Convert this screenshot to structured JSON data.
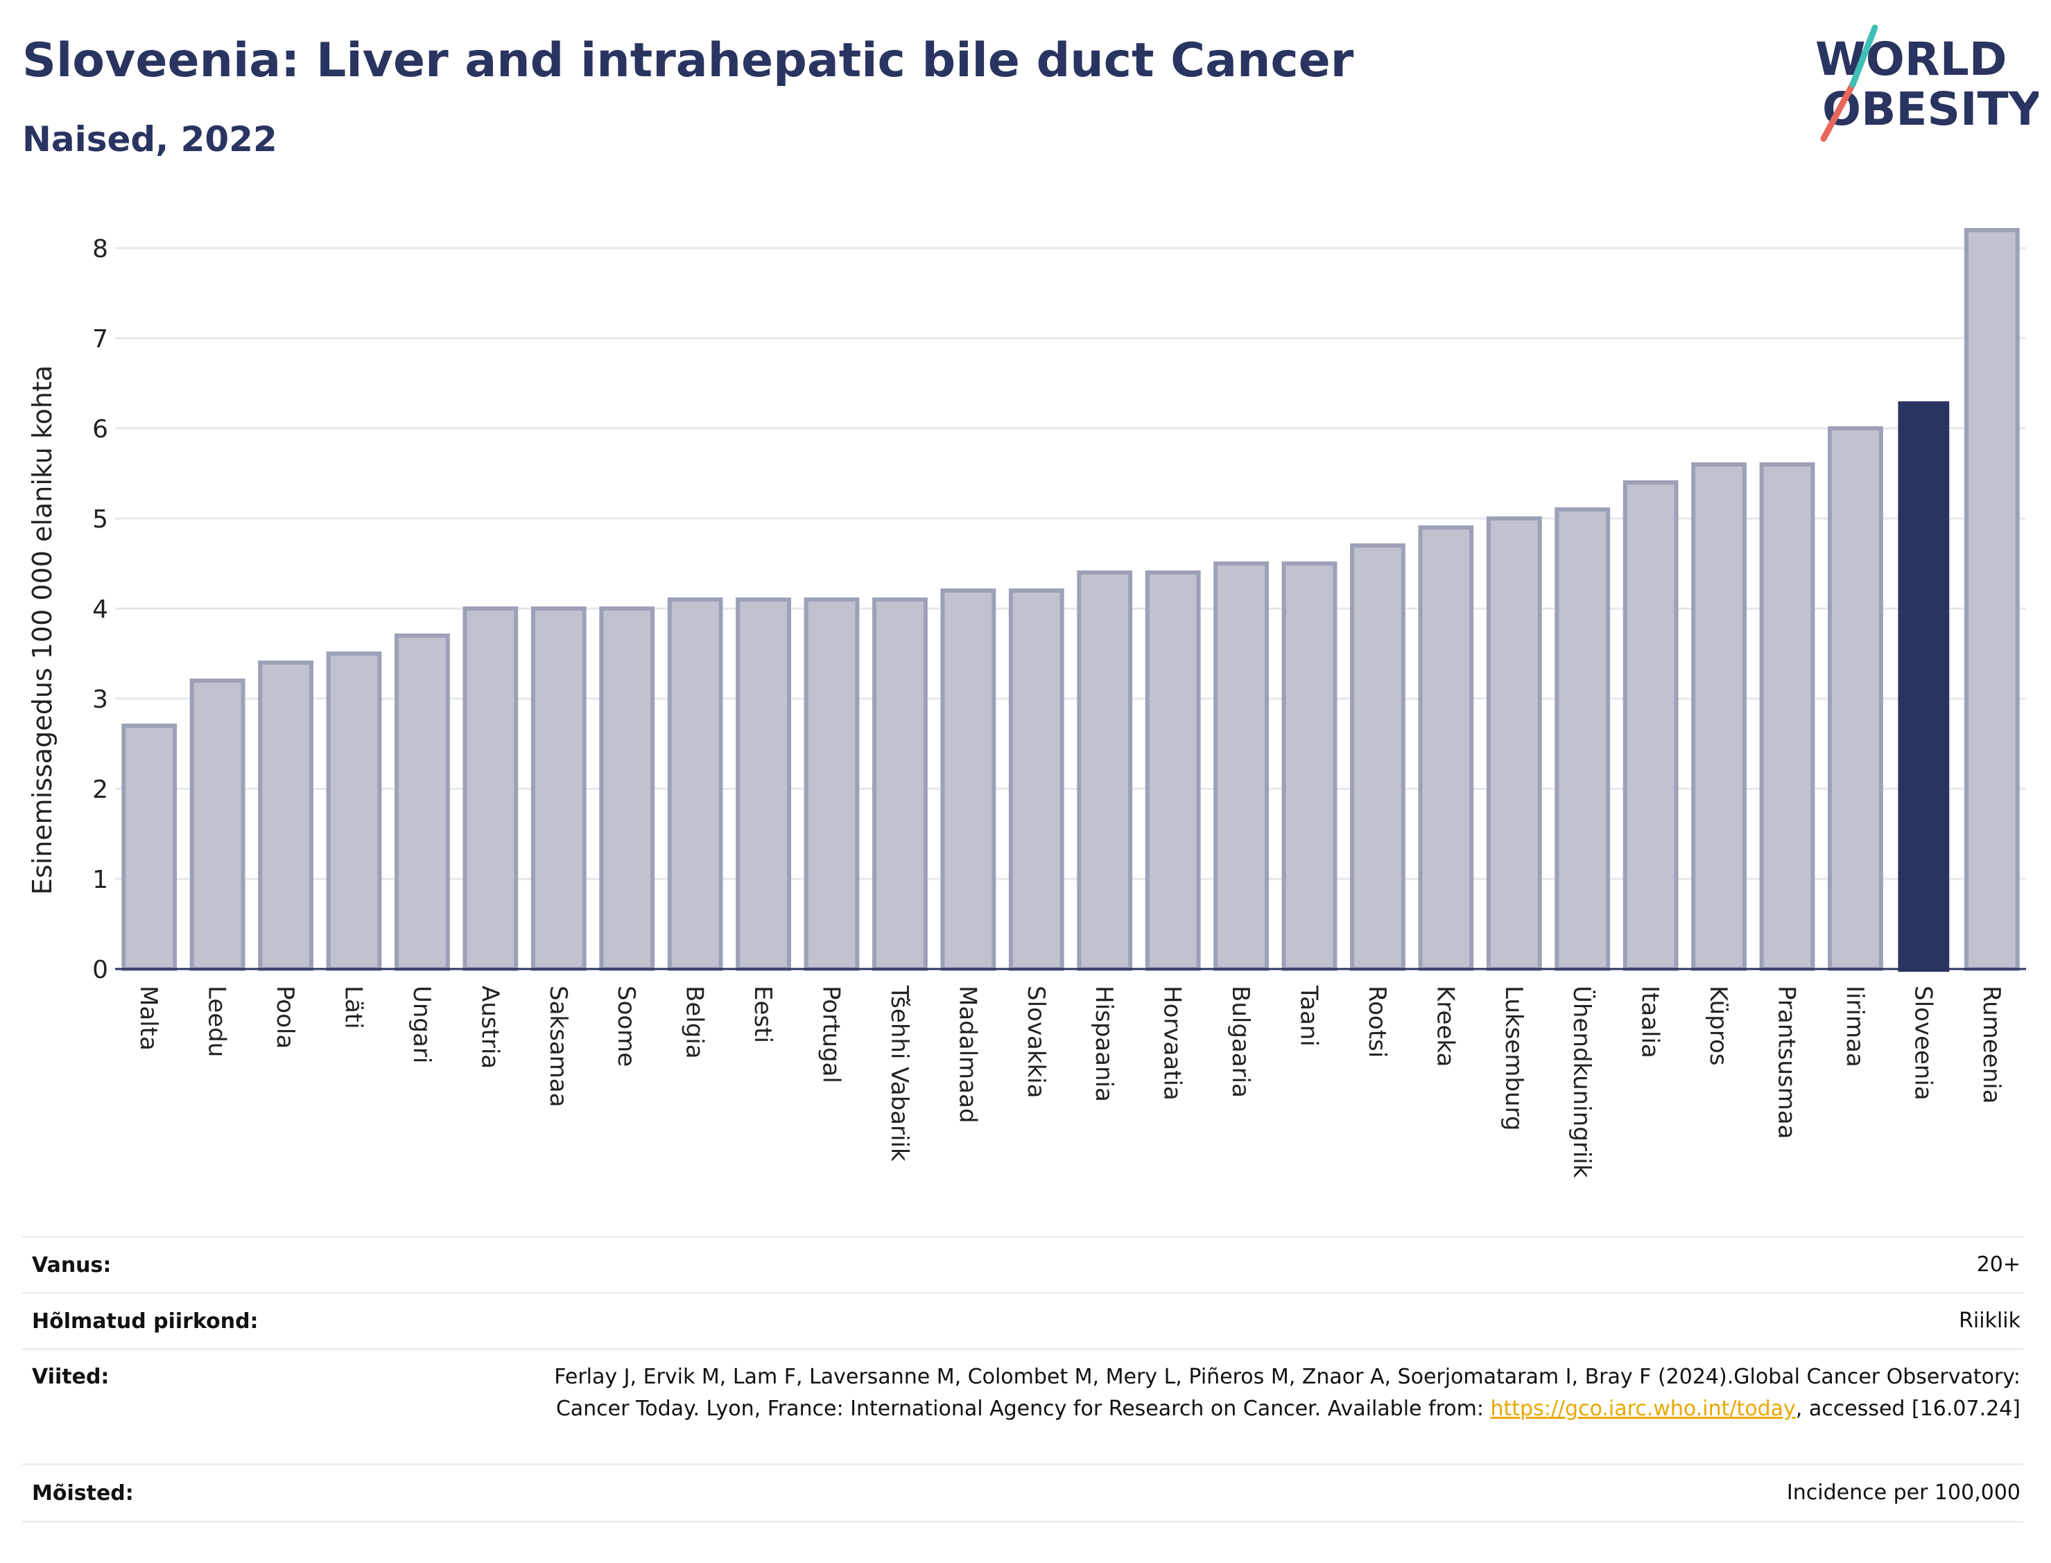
{
  "title": "Sloveenia: Liver and intrahepatic bile duct Cancer",
  "subtitle": "Naised, 2022",
  "logo": {
    "line1": "WORLD",
    "line2": "OBESITY",
    "colors": [
      "#2a3461",
      "#e8665a",
      "#3fbfb5"
    ]
  },
  "colors": {
    "bar": "#bfc2cf",
    "bar_stroke": "#9ca1b7",
    "highlight": "#2a3461",
    "grid": "#e6e7ee",
    "axis": "#2a3461"
  },
  "chart_data": {
    "type": "bar",
    "title": "Sloveenia: Liver and intrahepatic bile duct Cancer",
    "subtitle": "Naised, 2022",
    "xlabel": "",
    "ylabel": "Esinemissagedus 100 000 elaniku kohta",
    "ylim": [
      0,
      8.3
    ],
    "yticks": [
      0,
      1,
      2,
      3,
      4,
      5,
      6,
      7,
      8
    ],
    "grid": true,
    "highlight": "Sloveenia",
    "categories": [
      "Malta",
      "Leedu",
      "Poola",
      "Läti",
      "Ungari",
      "Austria",
      "Saksamaa",
      "Soome",
      "Belgia",
      "Eesti",
      "Portugal",
      "Tšehhi Vabariik",
      "Madalmaad",
      "Slovakkia",
      "Hispaania",
      "Horvaatia",
      "Bulgaaria",
      "Taani",
      "Rootsi",
      "Kreeka",
      "Luksemburg",
      "Ühendkuningriik",
      "Itaalia",
      "Küpros",
      "Prantsusmaa",
      "Iirimaa",
      "Sloveenia",
      "Rumeenia"
    ],
    "values": [
      2.7,
      3.2,
      3.4,
      3.5,
      3.7,
      4.0,
      4.0,
      4.0,
      4.1,
      4.1,
      4.1,
      4.1,
      4.2,
      4.2,
      4.4,
      4.4,
      4.5,
      4.5,
      4.7,
      4.9,
      5.0,
      5.1,
      5.4,
      5.6,
      5.6,
      6.0,
      6.3,
      8.2
    ]
  },
  "info": [
    {
      "key": "Vanus:",
      "value": "20+"
    },
    {
      "key": "Hõlmatud piirkond:",
      "value": "Riiklik"
    },
    {
      "key": "Viited:",
      "value_pre": "Ferlay J, Ervik M, Lam F, Laversanne M, Colombet M, Mery L, Piñeros M, Znaor A, Soerjomataram I, Bray F (2024).Global Cancer Observatory: Cancer Today. Lyon, France: International Agency for Research on Cancer. Available from: ",
      "link": "https://gco.iarc.who.int/today",
      "value_post": ", accessed [16.07.24]"
    },
    {
      "key": "Mõisted:",
      "value": "Incidence per 100,000"
    }
  ]
}
